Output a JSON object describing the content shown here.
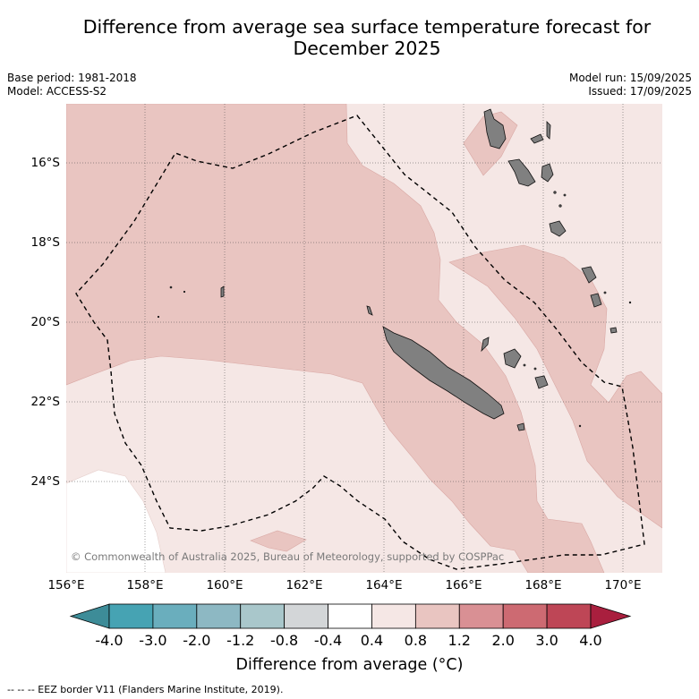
{
  "title_line1": "Difference from average sea surface temperature forecast for",
  "title_line2": "December 2025",
  "base_period": "Base period: 1981-2018",
  "model": "Model: ACCESS-S2",
  "model_run": "Model run: 15/09/2025",
  "issued": "Issued: 17/09/2025",
  "copyright": "© Commonwealth of Australia 2025, Bureau of Meteorology, supported by COSPPac",
  "lat_labels": [
    "16°S",
    "18°S",
    "20°S",
    "22°S",
    "24°S"
  ],
  "lon_labels": [
    "156°E",
    "158°E",
    "160°E",
    "162°E",
    "164°E",
    "166°E",
    "168°E",
    "170°E"
  ],
  "colorbar": {
    "ticks": [
      "-4.0",
      "-3.0",
      "-2.0",
      "-1.2",
      "-0.8",
      "-0.4",
      "0.4",
      "0.8",
      "1.2",
      "2.0",
      "3.0",
      "4.0"
    ],
    "colors": [
      "#3d8c98",
      "#46a3b3",
      "#6aaebd",
      "#8db8c3",
      "#a9c7cb",
      "#d3d6d8",
      "#ffffff",
      "#f5e7e5",
      "#e9c5c1",
      "#d99094",
      "#cd6a72",
      "#be4656",
      "#a91f3e"
    ],
    "title": "Difference from average (°C)"
  },
  "footer": "--  --  -- EEZ border V11 (Flanders Marine Institute, 2019).",
  "colors": {
    "anomaly_0_4_to_0_8": "#f5e7e5",
    "anomaly_0_8_to_1_2": "#e9c5c1",
    "land": "#808080"
  }
}
